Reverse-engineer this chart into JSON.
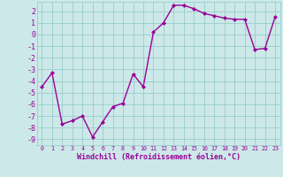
{
  "x": [
    0,
    1,
    2,
    3,
    4,
    5,
    6,
    7,
    8,
    9,
    10,
    11,
    12,
    13,
    14,
    15,
    16,
    17,
    18,
    19,
    20,
    21,
    22,
    23
  ],
  "y": [
    -4.5,
    -3.3,
    -7.7,
    -7.4,
    -7.0,
    -8.8,
    -7.5,
    -6.2,
    -5.9,
    -3.4,
    -4.5,
    0.2,
    1.0,
    2.5,
    2.5,
    2.2,
    1.8,
    1.6,
    1.4,
    1.3,
    1.3,
    -1.3,
    -1.2,
    1.5
  ],
  "line_color": "#990099",
  "marker": "D",
  "marker_size": 2,
  "xlabel": "Windchill (Refroidissement éolien,°C)",
  "ylim": [
    -9.5,
    2.8
  ],
  "xlim": [
    -0.5,
    23.5
  ],
  "yticks": [
    -9,
    -8,
    -7,
    -6,
    -5,
    -4,
    -3,
    -2,
    -1,
    0,
    1,
    2
  ],
  "xticks": [
    0,
    1,
    2,
    3,
    4,
    5,
    6,
    7,
    8,
    9,
    10,
    11,
    12,
    13,
    14,
    15,
    16,
    17,
    18,
    19,
    20,
    21,
    22,
    23
  ],
  "bg_color": "#cce8e8",
  "grid_color": "#99cccc",
  "xlabel_color": "#990099",
  "xlabel_fontsize": 6.0,
  "ytick_fontsize": 6.0,
  "xtick_fontsize": 4.8,
  "line_width": 1.0
}
